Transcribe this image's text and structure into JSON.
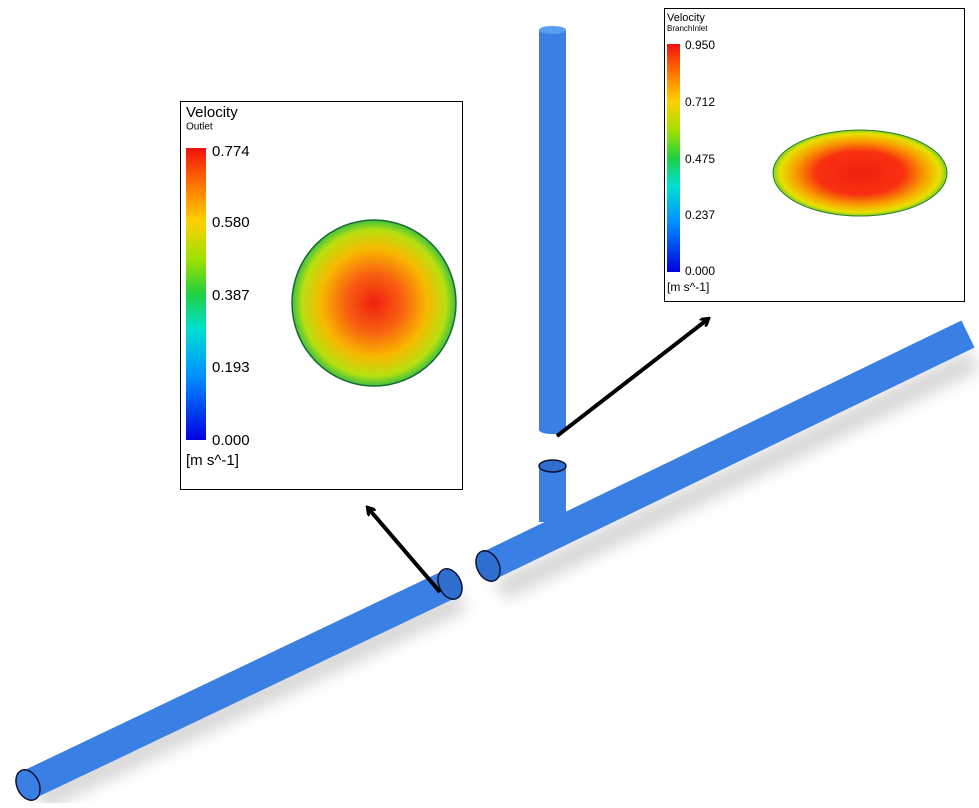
{
  "outlet_legend": {
    "title": "Velocity",
    "location": "Outlet",
    "ticks": [
      "0.774",
      "0.580",
      "0.387",
      "0.193",
      "0.000"
    ],
    "unit": "[m s^-1]"
  },
  "branch_legend": {
    "title": "Velocity",
    "location": "BranchInlet",
    "ticks": [
      "0.950",
      "0.712",
      "0.475",
      "0.237",
      "0.000"
    ],
    "unit": "[m s^-1]"
  }
}
